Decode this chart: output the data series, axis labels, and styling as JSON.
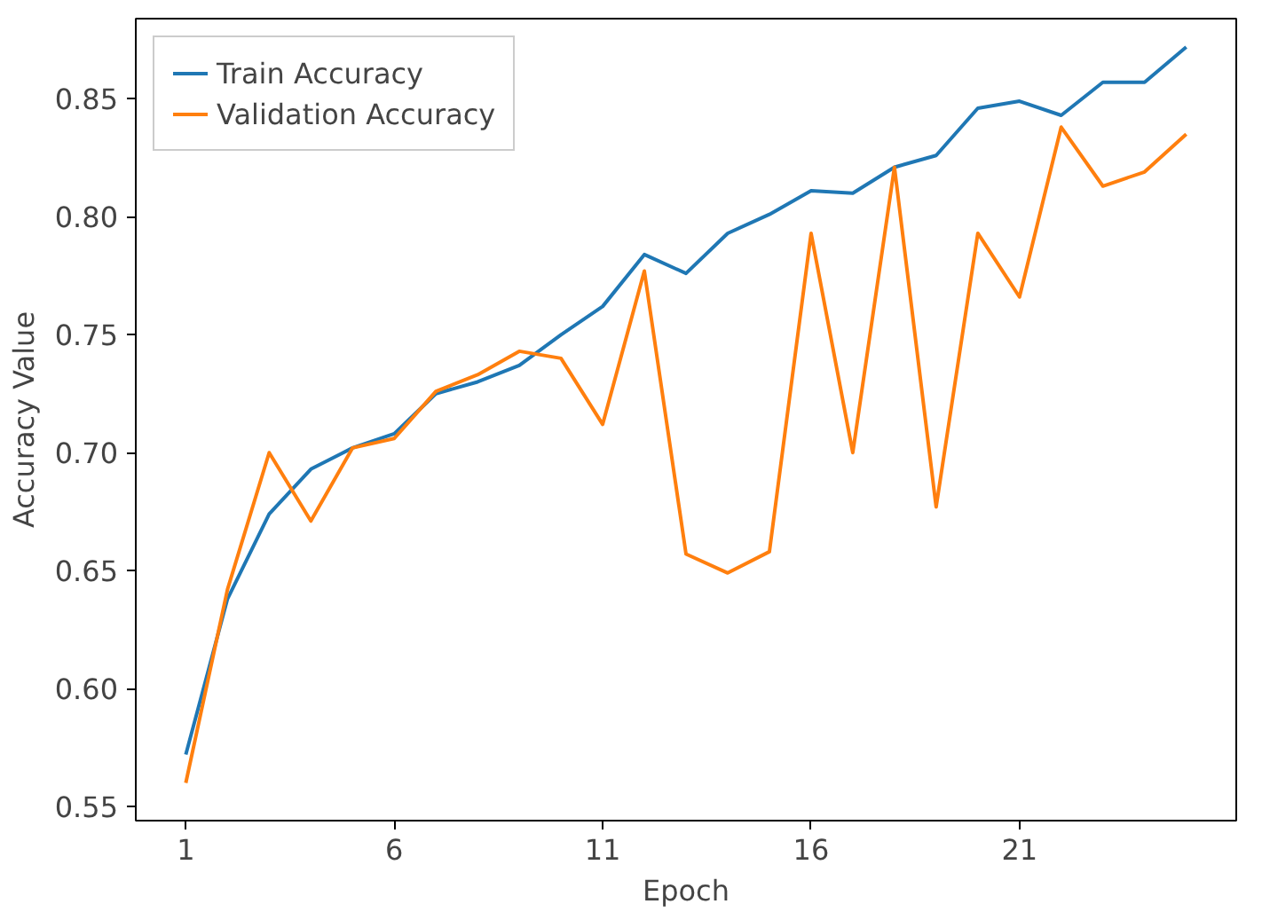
{
  "chart_data": {
    "type": "line",
    "xlabel": "Epoch",
    "ylabel": "Accuracy Value",
    "x": [
      1,
      2,
      3,
      4,
      5,
      6,
      7,
      8,
      9,
      10,
      11,
      12,
      13,
      14,
      15,
      16,
      17,
      18,
      19,
      20,
      21,
      22,
      23,
      24,
      25
    ],
    "series": [
      {
        "name": "Train Accuracy",
        "color": "#1f77b4",
        "values": [
          0.572,
          0.638,
          0.674,
          0.693,
          0.702,
          0.708,
          0.725,
          0.73,
          0.737,
          0.75,
          0.762,
          0.784,
          0.776,
          0.793,
          0.801,
          0.811,
          0.81,
          0.821,
          0.826,
          0.846,
          0.849,
          0.843,
          0.857,
          0.857,
          0.872
        ]
      },
      {
        "name": "Validation Accuracy",
        "color": "#ff7f0e",
        "values": [
          0.56,
          0.642,
          0.7,
          0.671,
          0.702,
          0.706,
          0.726,
          0.733,
          0.743,
          0.74,
          0.712,
          0.777,
          0.657,
          0.649,
          0.658,
          0.793,
          0.7,
          0.821,
          0.677,
          0.793,
          0.766,
          0.838,
          0.813,
          0.819,
          0.835
        ]
      }
    ],
    "xlim": [
      -0.2,
      26.2
    ],
    "ylim": [
      0.544,
      0.884
    ],
    "xticks": [
      1,
      6,
      11,
      16,
      21
    ],
    "yticks": [
      {
        "value": 0.55,
        "label": "0.55"
      },
      {
        "value": 0.6,
        "label": "0.60"
      },
      {
        "value": 0.65,
        "label": "0.65"
      },
      {
        "value": 0.7,
        "label": "0.70"
      },
      {
        "value": 0.75,
        "label": "0.75"
      },
      {
        "value": 0.8,
        "label": "0.80"
      },
      {
        "value": 0.85,
        "label": "0.85"
      }
    ],
    "grid": false,
    "legend": "top left"
  }
}
